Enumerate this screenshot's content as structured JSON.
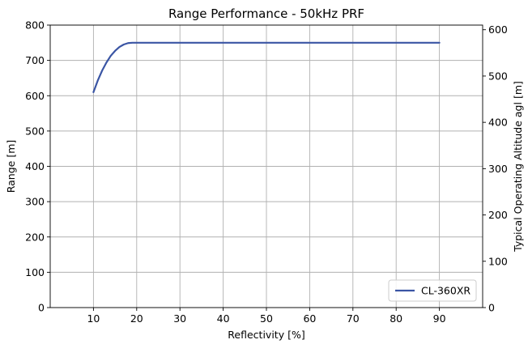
{
  "chart_data": {
    "type": "line",
    "title": "Range Performance - 50kHz PRF",
    "xlabel": "Reflectivity [%]",
    "ylabel": "Range [m]",
    "y2label": "Typical Operating Altitude agl [m]",
    "xlim": [
      0,
      100
    ],
    "ylim": [
      0,
      800
    ],
    "y2lim": [
      0,
      610
    ],
    "xticks": [
      10,
      20,
      30,
      40,
      50,
      60,
      70,
      80,
      90
    ],
    "yticks": [
      0,
      100,
      200,
      300,
      400,
      500,
      600,
      700,
      800
    ],
    "y2ticks": [
      0,
      100,
      200,
      300,
      400,
      500,
      600
    ],
    "grid": true,
    "legend_position": "lower-right",
    "series": [
      {
        "name": "CL-360XR",
        "color": "#3a55a4",
        "x": [
          10,
          11,
          12,
          13,
          14,
          15,
          16,
          17,
          18,
          19,
          20,
          30,
          40,
          50,
          60,
          70,
          80,
          90
        ],
        "values": [
          610,
          643,
          671,
          694,
          713,
          727,
          738,
          745,
          749,
          750,
          750,
          750,
          750,
          750,
          750,
          750,
          750,
          750
        ]
      }
    ]
  }
}
